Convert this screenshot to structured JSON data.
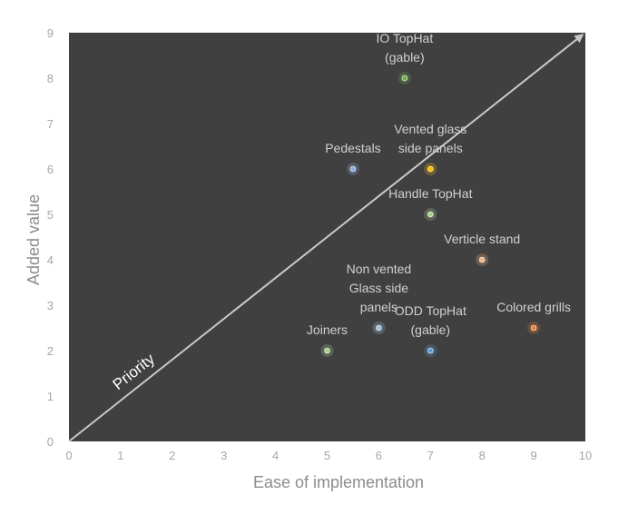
{
  "chart_data": {
    "type": "scatter",
    "xlabel": "Ease of implementation",
    "ylabel": "Added value",
    "xlim": [
      0,
      10
    ],
    "ylim": [
      0,
      9
    ],
    "x_ticks": [
      "0",
      "1",
      "2",
      "3",
      "4",
      "5",
      "6",
      "7",
      "8",
      "9",
      "10"
    ],
    "y_ticks": [
      "0",
      "1",
      "2",
      "3",
      "4",
      "5",
      "6",
      "7",
      "8",
      "9"
    ],
    "grid": false,
    "plot_background": "#404040",
    "points": [
      {
        "label_lines": [
          "IO TopHat",
          "(gable)"
        ],
        "x": 6.5,
        "y": 8,
        "color": "#70ad47"
      },
      {
        "label_lines": [
          "Vented glass",
          "side panels"
        ],
        "x": 7,
        "y": 6,
        "color": "#ffc000"
      },
      {
        "label_lines": [
          "Pedestals"
        ],
        "x": 5.5,
        "y": 6,
        "color": "#8faadc"
      },
      {
        "label_lines": [
          "Handle TopHat"
        ],
        "x": 7,
        "y": 5,
        "color": "#a9d18e"
      },
      {
        "label_lines": [
          "Verticle stand"
        ],
        "x": 8,
        "y": 4,
        "color": "#f4b183"
      },
      {
        "label_lines": [
          "Non vented",
          "Glass side",
          "panels"
        ],
        "x": 6,
        "y": 2.5,
        "color": "#9dc3e6"
      },
      {
        "label_lines": [
          "ODD TopHat",
          "(gable)"
        ],
        "x": 7,
        "y": 2,
        "color": "#5b9bd5"
      },
      {
        "label_lines": [
          "Colored grills"
        ],
        "x": 9,
        "y": 2.5,
        "color": "#ed7d31"
      },
      {
        "label_lines": [
          "Joiners"
        ],
        "x": 5,
        "y": 2,
        "color": "#a9d18e"
      }
    ],
    "annotation": {
      "text": "Priority",
      "arrow_from": [
        0,
        0
      ],
      "arrow_to": [
        10,
        9
      ],
      "color": "#c8c8c8"
    }
  }
}
